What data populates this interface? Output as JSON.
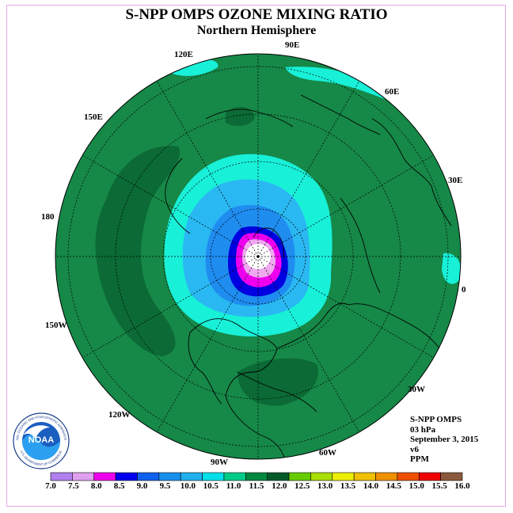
{
  "header": {
    "title": "S-NPP OMPS OZONE MIXING RATIO",
    "subtitle": "Northern Hemisphere"
  },
  "longitude_labels": [
    "90E",
    "60E",
    "30E",
    "0",
    "30W",
    "60W",
    "90W",
    "120W",
    "150W",
    "180",
    "150E",
    "120E"
  ],
  "info": {
    "line1": "S-NPP OMPS",
    "line2": "03 hPa",
    "line3": "September 3, 2015",
    "line4": "v6",
    "line5": "PPM"
  },
  "colorbar": {
    "ticks": [
      "7.0",
      "7.5",
      "8.0",
      "8.5",
      "9.0",
      "9.5",
      "10.0",
      "10.5",
      "11.0",
      "11.5",
      "12.0",
      "12.5",
      "13.0",
      "13.5",
      "14.0",
      "14.5",
      "15.0",
      "15.5",
      "16.0"
    ],
    "colors": [
      "#b080ee",
      "#e0a0f0",
      "#ee00ee",
      "#0000ee",
      "#1060ee",
      "#1890ee",
      "#20b0ee",
      "#00e0e8",
      "#00cc88",
      "#008840",
      "#005a28",
      "#66cc00",
      "#aadd00",
      "#eeee00",
      "#eec000",
      "#ee9000",
      "#ee5000",
      "#ee0000",
      "#8b5a3c"
    ]
  },
  "logo": {
    "name": "NOAA",
    "ring_text": "NATIONAL OCEANIC AND ATMOSPHERIC ADMINISTRATION",
    "ring_text_bottom": "U.S. DEPARTMENT OF COMMERCE"
  },
  "colors": {
    "background_green": "#168848",
    "dark_green": "#0b6a35",
    "cyan": "#18f0d8",
    "light_blue": "#2ab8f2",
    "mid_blue": "#1f8cf0",
    "dark_blue": "#0000e0",
    "magenta": "#ee00ee",
    "pink": "#f0a8f0"
  }
}
